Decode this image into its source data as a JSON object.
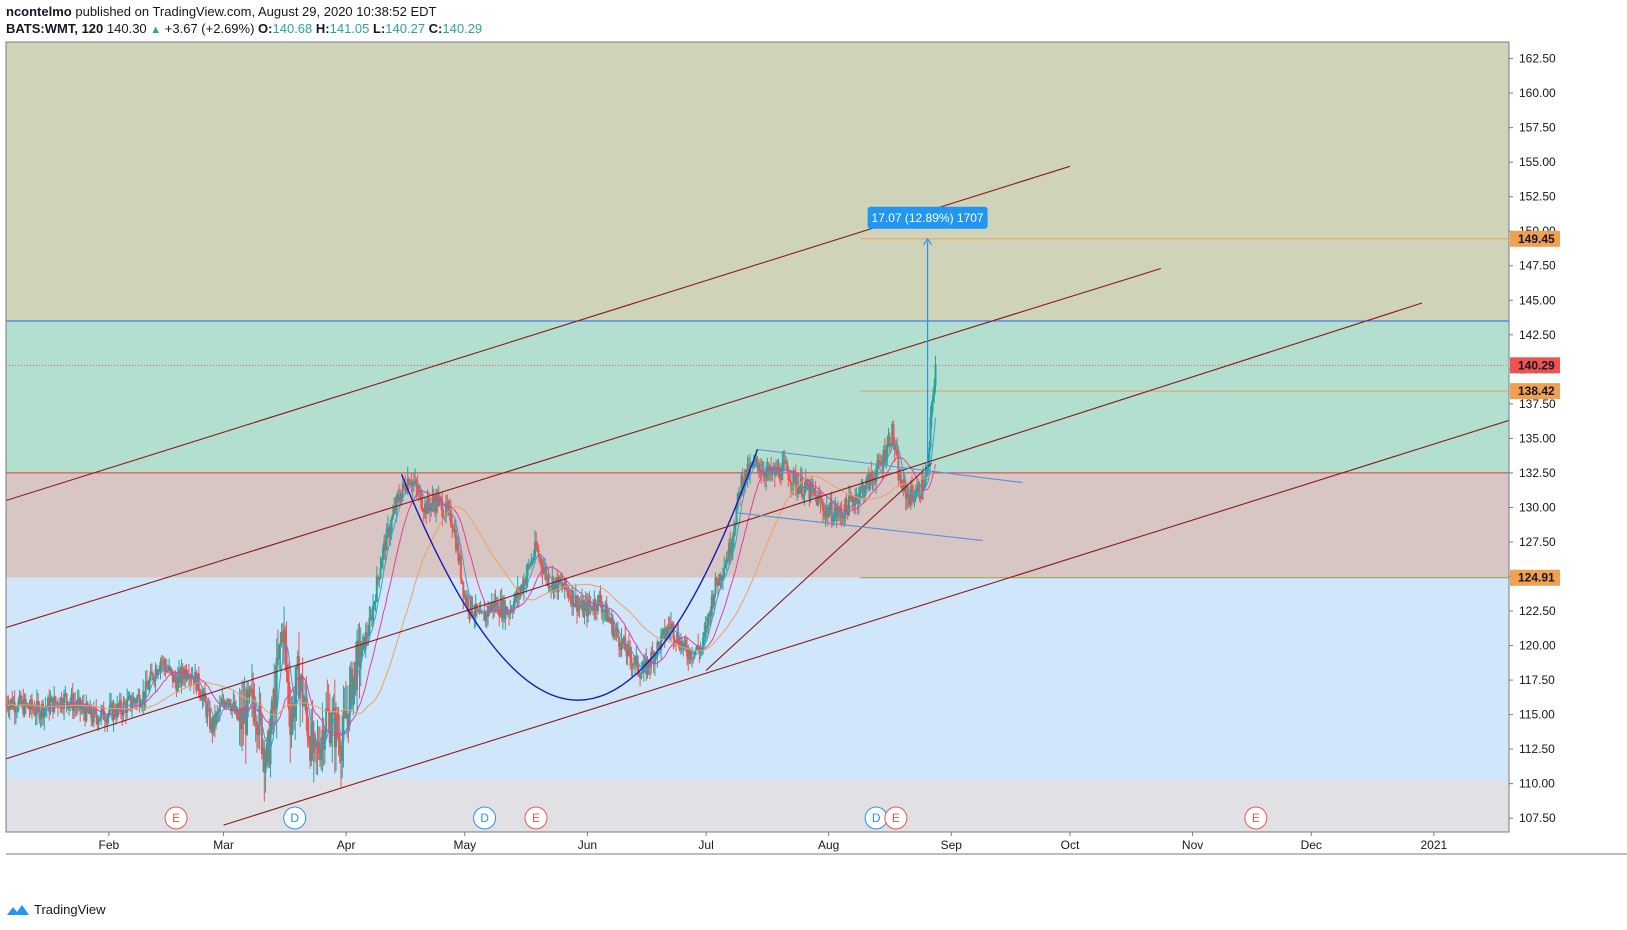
{
  "header": {
    "publisher": "ncontelmo",
    "published_text": "published on TradingView.com, August 29, 2020 10:38:52 EDT",
    "symbol": "BATS:WMT, 120",
    "last": "140.30",
    "change": "+3.67 (+2.69%)",
    "o_label": "O:",
    "o_value": "140.68",
    "h_label": "H:",
    "h_value": "141.05",
    "l_label": "L:",
    "l_value": "140.27",
    "c_label": "C:",
    "c_value": "140.29"
  },
  "footer": {
    "brand": "TradingView"
  },
  "colors": {
    "up": "#26a69a",
    "down": "#ef5350",
    "channel": "#8b1a1a",
    "cup": "#1a1ab5",
    "ma_fast": "#3f9bd8",
    "ma_mid": "#e040a0",
    "ma_slow": "#f0a060",
    "zone_top": "#cfd3b8",
    "zone_green": "#b2dfd0",
    "zone_red": "#d8c6c4",
    "zone_blue": "#cfe6fb",
    "zone_gray": "#e1e1e5"
  },
  "chart_data": {
    "type": "candlestick",
    "symbol": "BATS:WMT",
    "interval": "120",
    "x_ticks": [
      "Feb",
      "Mar",
      "Apr",
      "May",
      "Jun",
      "Jul",
      "Aug",
      "Sep",
      "Oct",
      "Nov",
      "Dec",
      "2021"
    ],
    "y_ticks": [
      "162.50",
      "160.00",
      "157.50",
      "155.00",
      "152.50",
      "150.00",
      "147.50",
      "145.00",
      "142.50",
      "140.00",
      "137.50",
      "135.00",
      "132.50",
      "130.00",
      "127.50",
      "125.00",
      "122.50",
      "120.00",
      "117.50",
      "115.00",
      "112.50",
      "110.00",
      "107.50"
    ],
    "ylim": [
      106.5,
      163.7
    ],
    "xlim": [
      "2020-01-06",
      "2021-01-20"
    ],
    "price_labels": [
      {
        "value": "149.45",
        "color": "#f0a050"
      },
      {
        "value": "140.29",
        "color": "#ef5350"
      },
      {
        "value": "138.42",
        "color": "#f0a050"
      },
      {
        "value": "124.91",
        "color": "#f0a050"
      }
    ],
    "zones": [
      {
        "from": 143.5,
        "to": 163.7,
        "color": "#cfd3b8"
      },
      {
        "from": 132.5,
        "to": 143.5,
        "color": "#b2dfd0"
      },
      {
        "from": 124.91,
        "to": 132.5,
        "color": "#d8c6c4"
      },
      {
        "from": 110.3,
        "to": 124.91,
        "color": "#cfe6fb"
      },
      {
        "from": 106.5,
        "to": 110.3,
        "color": "#e1e1e5"
      }
    ],
    "horizontal_lines": [
      {
        "value": 143.5,
        "color": "#2962ff"
      },
      {
        "value": 132.5,
        "color": "#e53935"
      },
      {
        "value": 140.29,
        "color": "#ef5350",
        "dotted": true
      },
      {
        "from_date": "2020-08-09",
        "value": 149.45,
        "color": "#f0a050"
      },
      {
        "from_date": "2020-08-09",
        "value": 138.42,
        "color": "#f0a050"
      },
      {
        "from_date": "2020-08-09",
        "value": 124.91,
        "color": "#9aa03a"
      }
    ],
    "channel_lines": [
      {
        "x1": "2020-01-06",
        "y1": 130.5,
        "x2": "2020-10-01",
        "y2": 154.7
      },
      {
        "x1": "2020-01-06",
        "y1": 121.3,
        "x2": "2020-10-24",
        "y2": 147.3
      },
      {
        "x1": "2020-01-06",
        "y1": 111.8,
        "x2": "2020-12-29",
        "y2": 144.8
      },
      {
        "x1": "2020-03-01",
        "y1": 107.0,
        "x2": "2021-01-20",
        "y2": 136.3
      },
      {
        "x1": "2020-07-01",
        "y1": 118.2,
        "x2": "2020-08-27",
        "y2": 133.2
      }
    ],
    "flag_lines": [
      {
        "x1": "2020-07-14",
        "y1": 134.2,
        "x2": "2020-09-19",
        "y2": 131.8
      },
      {
        "x1": "2020-07-09",
        "y1": 129.6,
        "x2": "2020-09-09",
        "y2": 127.6
      }
    ],
    "measure": {
      "label": "17.07 (12.89%) 1707",
      "date": "2020-08-26",
      "from": 132.4,
      "to": 149.45
    },
    "cup": [
      {
        "x": "2020-04-15",
        "y": 132.4
      },
      {
        "x": "2020-05-14",
        "y": 120.0
      },
      {
        "x": "2020-06-12",
        "y": 116.6
      },
      {
        "x": "2020-07-14",
        "y": 134.2
      }
    ],
    "events": [
      {
        "label": "E",
        "date": "2020-02-18"
      },
      {
        "label": "D",
        "date": "2020-03-19"
      },
      {
        "label": "D",
        "date": "2020-05-06"
      },
      {
        "label": "E",
        "date": "2020-05-19"
      },
      {
        "label": "D",
        "date": "2020-08-13"
      },
      {
        "label": "E",
        "date": "2020-08-18"
      },
      {
        "label": "E",
        "date": "2020-11-17"
      }
    ],
    "price_path": [
      {
        "d": "2020-01-06",
        "p": 116.0
      },
      {
        "d": "2020-01-14",
        "p": 115.3
      },
      {
        "d": "2020-01-21",
        "p": 116.2
      },
      {
        "d": "2020-01-28",
        "p": 114.8
      },
      {
        "d": "2020-02-04",
        "p": 115.4
      },
      {
        "d": "2020-02-10",
        "p": 116.5
      },
      {
        "d": "2020-02-14",
        "p": 119.0
      },
      {
        "d": "2020-02-18",
        "p": 117.3
      },
      {
        "d": "2020-02-21",
        "p": 118.4
      },
      {
        "d": "2020-02-24",
        "p": 117.0
      },
      {
        "d": "2020-02-27",
        "p": 114.0
      },
      {
        "d": "2020-03-02",
        "p": 116.5
      },
      {
        "d": "2020-03-05",
        "p": 114.3
      },
      {
        "d": "2020-03-09",
        "p": 116.0
      },
      {
        "d": "2020-03-12",
        "p": 111.5
      },
      {
        "d": "2020-03-16",
        "p": 121.5
      },
      {
        "d": "2020-03-18",
        "p": 114.5
      },
      {
        "d": "2020-03-20",
        "p": 118.0
      },
      {
        "d": "2020-03-24",
        "p": 111.5
      },
      {
        "d": "2020-03-27",
        "p": 115.0
      },
      {
        "d": "2020-03-31",
        "p": 113.2
      },
      {
        "d": "2020-04-03",
        "p": 118.0
      },
      {
        "d": "2020-04-07",
        "p": 121.5
      },
      {
        "d": "2020-04-10",
        "p": 126.5
      },
      {
        "d": "2020-04-14",
        "p": 130.5
      },
      {
        "d": "2020-04-17",
        "p": 132.3
      },
      {
        "d": "2020-04-21",
        "p": 130.0
      },
      {
        "d": "2020-04-24",
        "p": 130.5
      },
      {
        "d": "2020-04-28",
        "p": 129.0
      },
      {
        "d": "2020-05-01",
        "p": 123.5
      },
      {
        "d": "2020-05-05",
        "p": 121.8
      },
      {
        "d": "2020-05-08",
        "p": 123.0
      },
      {
        "d": "2020-05-12",
        "p": 122.5
      },
      {
        "d": "2020-05-15",
        "p": 124.0
      },
      {
        "d": "2020-05-19",
        "p": 127.0
      },
      {
        "d": "2020-05-22",
        "p": 124.8
      },
      {
        "d": "2020-05-27",
        "p": 124.0
      },
      {
        "d": "2020-05-31",
        "p": 122.5
      },
      {
        "d": "2020-06-04",
        "p": 123.3
      },
      {
        "d": "2020-06-08",
        "p": 121.0
      },
      {
        "d": "2020-06-11",
        "p": 119.5
      },
      {
        "d": "2020-06-15",
        "p": 118.0
      },
      {
        "d": "2020-06-18",
        "p": 119.5
      },
      {
        "d": "2020-06-22",
        "p": 121.5
      },
      {
        "d": "2020-06-26",
        "p": 119.5
      },
      {
        "d": "2020-06-30",
        "p": 119.8
      },
      {
        "d": "2020-07-03",
        "p": 124.0
      },
      {
        "d": "2020-07-07",
        "p": 127.0
      },
      {
        "d": "2020-07-10",
        "p": 132.0
      },
      {
        "d": "2020-07-14",
        "p": 133.2
      },
      {
        "d": "2020-07-17",
        "p": 132.3
      },
      {
        "d": "2020-07-21",
        "p": 132.8
      },
      {
        "d": "2020-07-24",
        "p": 131.7
      },
      {
        "d": "2020-07-28",
        "p": 131.0
      },
      {
        "d": "2020-07-31",
        "p": 129.8
      },
      {
        "d": "2020-08-04",
        "p": 129.5
      },
      {
        "d": "2020-08-07",
        "p": 130.5
      },
      {
        "d": "2020-08-11",
        "p": 131.8
      },
      {
        "d": "2020-08-14",
        "p": 133.0
      },
      {
        "d": "2020-08-17",
        "p": 135.5
      },
      {
        "d": "2020-08-19",
        "p": 131.8
      },
      {
        "d": "2020-08-21",
        "p": 130.8
      },
      {
        "d": "2020-08-24",
        "p": 131.2
      },
      {
        "d": "2020-08-26",
        "p": 132.5
      },
      {
        "d": "2020-08-27",
        "p": 137.0
      },
      {
        "d": "2020-08-28",
        "p": 140.3
      }
    ]
  }
}
